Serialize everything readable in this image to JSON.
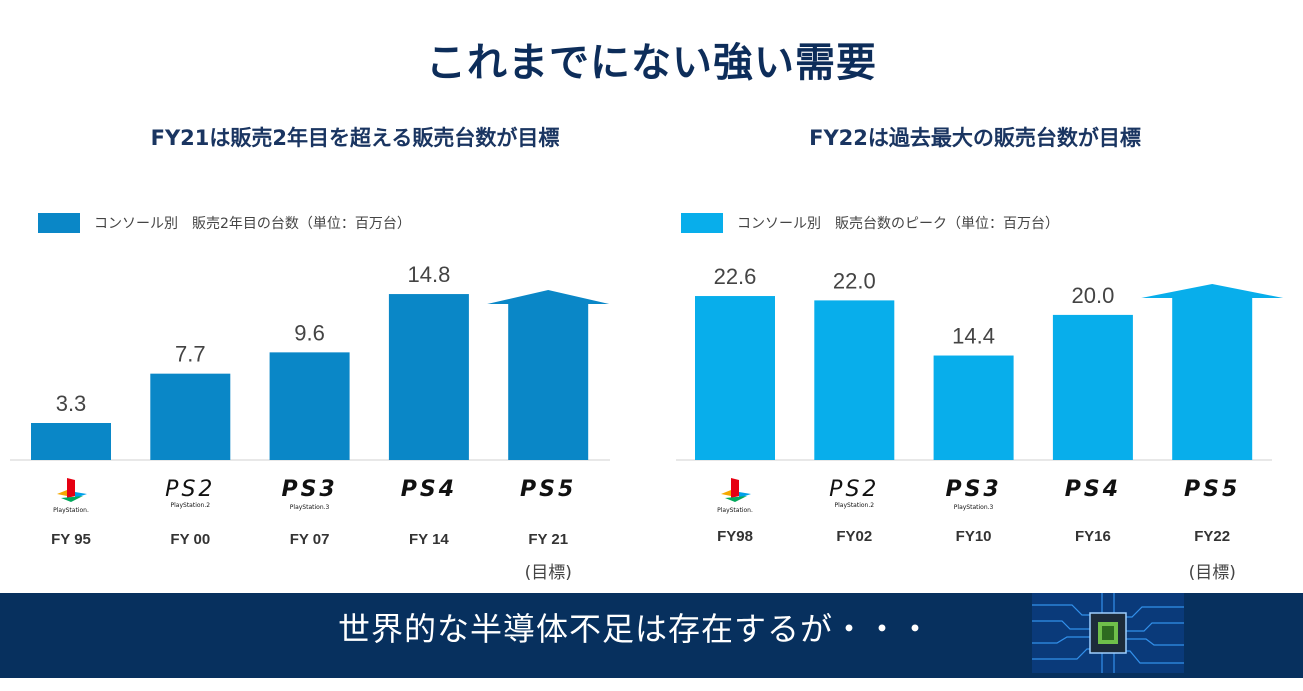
{
  "page": {
    "title": "これまでにない強い需要",
    "banner_text": "世界的な半導体不足は存在するが・・・"
  },
  "colors": {
    "title": "#0d2d5a",
    "left_bar": "#0a87c7",
    "right_bar": "#08aeeb",
    "banner": "#07305e"
  },
  "chart_data": [
    {
      "type": "bar",
      "title": "FY21は販売2年目を超える販売台数が目標",
      "legend": "コンソール別　販売2年目の台数（単位：百万台）",
      "categories": [
        "FY 95",
        "FY 00",
        "FY 07",
        "FY 14",
        "FY 21"
      ],
      "consoles": [
        "PlayStation",
        "PS2",
        "PS3",
        "PS4",
        "PS5"
      ],
      "values": [
        3.3,
        7.7,
        9.6,
        14.8,
        null
      ],
      "target_category_index": 4,
      "target_note": "(目標)",
      "ylim": [
        0,
        16.5
      ],
      "legend_position": "top-left"
    },
    {
      "type": "bar",
      "title": "FY22は過去最大の販売台数が目標",
      "legend": "コンソール別　販売台数のピーク（単位：百万台）",
      "categories": [
        "FY98",
        "FY02",
        "FY10",
        "FY16",
        "FY22"
      ],
      "consoles": [
        "PlayStation",
        "PS2",
        "PS3",
        "PS4",
        "PS5"
      ],
      "values": [
        22.6,
        22.0,
        14.4,
        20.0,
        null
      ],
      "target_category_index": 4,
      "target_note": "(目標)",
      "ylim": [
        0,
        25.5
      ],
      "legend_position": "top-left"
    }
  ]
}
